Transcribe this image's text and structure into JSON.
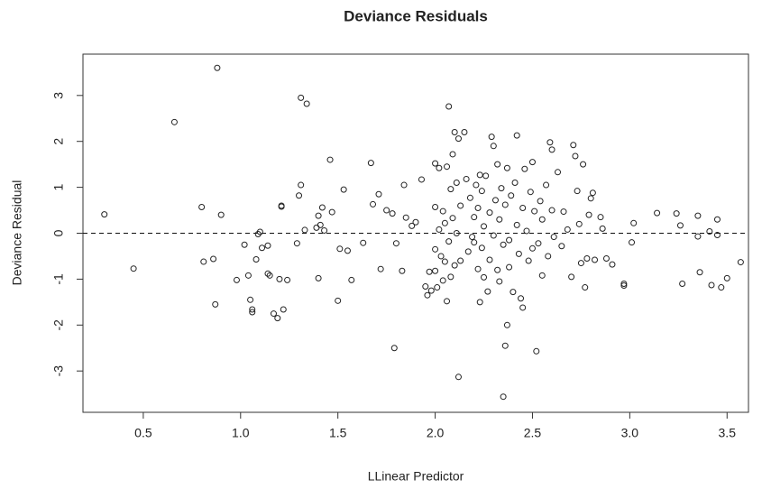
{
  "chart_data": {
    "type": "scatter",
    "title": "Deviance Residuals",
    "x_label": "LLinear Predictor",
    "y_label": "Deviance Residual",
    "xlim": [
      0.19,
      3.61
    ],
    "ylim": [
      -3.9,
      3.9
    ],
    "xticks": [
      0.5,
      {
        "value": 1,
        "label": "1.0"
      },
      1.5,
      {
        "value": 2,
        "label": "2.0"
      },
      2.5,
      {
        "value": 3,
        "label": "3.0"
      },
      3.5
    ],
    "yticks": [
      -3,
      -2,
      -1,
      0,
      1,
      2,
      3
    ],
    "reference_line": 0,
    "color": "#222222",
    "x": [
      0.3,
      0.45,
      0.66,
      0.8,
      0.81,
      0.86,
      0.87,
      0.88,
      0.9,
      0.98,
      1.02,
      1.04,
      1.05,
      1.06,
      1.06,
      1.08,
      1.09,
      1.1,
      1.11,
      1.14,
      1.14,
      1.15,
      1.17,
      1.19,
      1.2,
      1.21,
      1.21,
      1.22,
      1.24,
      1.29,
      1.3,
      1.31,
      1.31,
      1.33,
      1.34,
      1.39,
      1.4,
      1.4,
      1.41,
      1.42,
      1.43,
      1.46,
      1.47,
      1.5,
      1.51,
      1.53,
      1.55,
      1.57,
      1.63,
      1.67,
      1.68,
      1.71,
      1.72,
      1.75,
      1.78,
      1.79,
      1.8,
      1.83,
      1.84,
      1.85,
      1.88,
      1.9,
      1.93,
      1.95,
      1.96,
      1.97,
      1.98,
      2.0,
      2.0,
      2.0,
      2.0,
      2.01,
      2.02,
      2.02,
      2.03,
      2.04,
      2.04,
      2.05,
      2.05,
      2.06,
      2.06,
      2.07,
      2.07,
      2.08,
      2.08,
      2.09,
      2.09,
      2.1,
      2.1,
      2.11,
      2.11,
      2.12,
      2.12,
      2.13,
      2.13,
      2.15,
      2.16,
      2.17,
      2.18,
      2.19,
      2.2,
      2.2,
      2.21,
      2.22,
      2.22,
      2.23,
      2.23,
      2.24,
      2.24,
      2.25,
      2.25,
      2.26,
      2.27,
      2.28,
      2.28,
      2.29,
      2.3,
      2.3,
      2.31,
      2.32,
      2.32,
      2.33,
      2.33,
      2.34,
      2.35,
      2.35,
      2.36,
      2.36,
      2.37,
      2.37,
      2.38,
      2.38,
      2.39,
      2.4,
      2.41,
      2.42,
      2.42,
      2.43,
      2.44,
      2.45,
      2.45,
      2.46,
      2.47,
      2.48,
      2.49,
      2.5,
      2.5,
      2.51,
      2.52,
      2.53,
      2.54,
      2.55,
      2.55,
      2.57,
      2.58,
      2.59,
      2.6,
      2.6,
      2.61,
      2.63,
      2.65,
      2.66,
      2.68,
      2.7,
      2.71,
      2.72,
      2.73,
      2.74,
      2.75,
      2.76,
      2.77,
      2.78,
      2.79,
      2.8,
      2.81,
      2.82,
      2.85,
      2.86,
      2.88,
      2.91,
      2.97,
      2.97,
      3.01,
      3.02,
      3.14,
      3.24,
      3.26,
      3.27,
      3.35,
      3.35,
      3.36,
      3.41,
      3.42,
      3.45,
      3.45,
      3.47,
      3.5,
      3.57
    ],
    "values": [
      0.41,
      -0.77,
      2.42,
      0.57,
      -0.62,
      -0.56,
      -1.55,
      3.6,
      0.4,
      -1.02,
      -0.25,
      -0.92,
      -1.45,
      -1.66,
      -1.72,
      -0.57,
      -0.02,
      0.03,
      -0.32,
      -0.27,
      -0.88,
      -0.92,
      -1.75,
      -1.85,
      -1.0,
      0.58,
      0.6,
      -1.66,
      -1.02,
      -0.22,
      0.82,
      2.95,
      1.05,
      0.07,
      2.82,
      0.12,
      -0.98,
      0.38,
      0.18,
      0.56,
      0.06,
      1.6,
      0.46,
      -1.47,
      -0.34,
      0.95,
      -0.38,
      -1.02,
      -0.21,
      1.53,
      0.63,
      0.85,
      -0.78,
      0.5,
      0.43,
      -2.5,
      -0.22,
      -0.82,
      1.05,
      0.34,
      0.16,
      0.24,
      1.17,
      -1.16,
      -1.35,
      -0.84,
      -1.25,
      1.52,
      0.57,
      -0.35,
      -0.82,
      -1.18,
      1.42,
      0.08,
      -0.5,
      0.48,
      -1.03,
      -0.62,
      0.22,
      1.45,
      -1.48,
      2.76,
      -0.18,
      0.96,
      -0.95,
      1.72,
      0.33,
      2.2,
      -0.7,
      1.1,
      0.0,
      -3.13,
      2.06,
      0.6,
      -0.6,
      2.2,
      1.18,
      -0.4,
      0.77,
      -0.08,
      -0.2,
      0.35,
      1.05,
      -0.78,
      0.55,
      1.27,
      -1.5,
      0.92,
      -0.32,
      0.15,
      -0.96,
      1.25,
      -1.27,
      0.45,
      -0.58,
      2.1,
      1.9,
      -0.05,
      0.72,
      -0.8,
      1.5,
      0.3,
      -1.05,
      0.98,
      -0.25,
      -3.56,
      -2.45,
      0.62,
      -2.0,
      1.42,
      -0.15,
      -0.74,
      0.82,
      -1.28,
      1.1,
      2.13,
      0.18,
      -0.45,
      -1.42,
      0.55,
      -1.62,
      1.4,
      0.05,
      -0.6,
      0.9,
      1.55,
      -0.33,
      0.48,
      -2.57,
      -0.22,
      0.7,
      -0.92,
      0.3,
      1.05,
      -0.5,
      1.98,
      0.5,
      1.82,
      -0.08,
      1.33,
      -0.28,
      0.47,
      0.08,
      -0.95,
      1.92,
      1.68,
      0.92,
      0.2,
      -0.65,
      1.5,
      -1.18,
      -0.55,
      0.4,
      0.76,
      0.88,
      -0.58,
      0.35,
      0.1,
      -0.55,
      -0.68,
      -1.1,
      -1.14,
      -0.2,
      0.22,
      0.44,
      0.43,
      0.17,
      -1.1,
      0.38,
      -0.07,
      -0.85,
      0.04,
      -1.13,
      0.3,
      -0.04,
      -1.18,
      -0.98,
      -0.63
    ]
  }
}
